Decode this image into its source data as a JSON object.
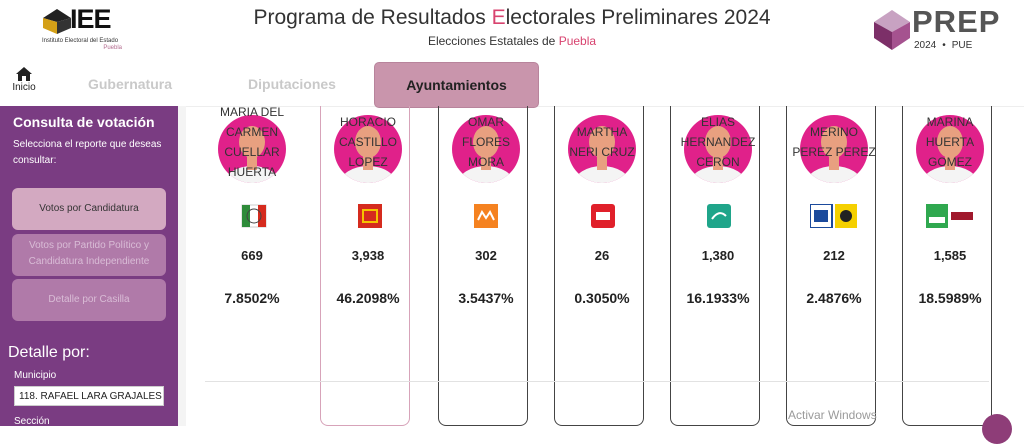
{
  "header": {
    "iee_logo_text": "IEE",
    "iee_logo_sub": "Instituto Electoral del Estado",
    "iee_logo_state": "Puebla",
    "title_pre": "Programa de Resultados ",
    "title_hl": "E",
    "title_post": "lectorales Preliminares 2024",
    "subtitle_pre": "Elecciones Estatales de ",
    "subtitle_hl": "Puebla",
    "prep_logo_text": "PREP",
    "prep_year": "2024",
    "prep_state": "PUE",
    "accent_color": "#d8436f"
  },
  "nav": {
    "home_label": "Inicio",
    "home_icon": "home-icon",
    "tabs": [
      {
        "label": "Gubernatura",
        "active": false
      },
      {
        "label": "Diputaciones",
        "active": false
      },
      {
        "label": "Ayuntamientos",
        "active": true
      }
    ]
  },
  "sidebar": {
    "title": "Consulta de votación",
    "description": "Selecciona el reporte que deseas consultar:",
    "buttons": [
      {
        "label": "Votos por Candidatura",
        "active": true
      },
      {
        "label": "Votos por Partido Político y Candidatura Independiente",
        "active": false
      },
      {
        "label": "Detalle por Casilla",
        "active": false
      }
    ],
    "detail_title": "Detalle por:",
    "municipio_label": "Municipio",
    "municipio_value": "118. RAFAEL LARA GRAJALES",
    "seccion_label": "Sección",
    "bg_color": "#7a3c82"
  },
  "candidates": [
    {
      "name_lines": [
        "MARIA DEL",
        "CARMEN",
        "CUELLAR",
        "HUERTA"
      ],
      "party": "PRI",
      "votes": "669",
      "percent": "7.8502%"
    },
    {
      "name_lines": [
        "HORACIO",
        "CASTILLO",
        "LOPEZ"
      ],
      "party": "PT",
      "votes": "3,938",
      "percent": "46.2098%"
    },
    {
      "name_lines": [
        "OMAR",
        "FLORES",
        "MORA"
      ],
      "party": "MC",
      "votes": "302",
      "percent": "3.5437%"
    },
    {
      "name_lines": [
        "MARTHA",
        "NERI CRUZ"
      ],
      "party": "PSI",
      "votes": "26",
      "percent": "0.3050%"
    },
    {
      "name_lines": [
        "ELIAS",
        "HERNANDEZ",
        "CERON"
      ],
      "party": "Alianza",
      "votes": "1,380",
      "percent": "16.1933%"
    },
    {
      "name_lines": [
        "MERINO",
        "PEREZ PEREZ"
      ],
      "party": "PAN-PRD",
      "votes": "212",
      "percent": "2.4876%"
    },
    {
      "name_lines": [
        "MARINA",
        "HUERTA",
        "GOMEZ"
      ],
      "party": "VERDE-MORENA",
      "votes": "1,585",
      "percent": "18.5989%"
    }
  ],
  "overlay": {
    "watermark": "Activar Windows"
  }
}
